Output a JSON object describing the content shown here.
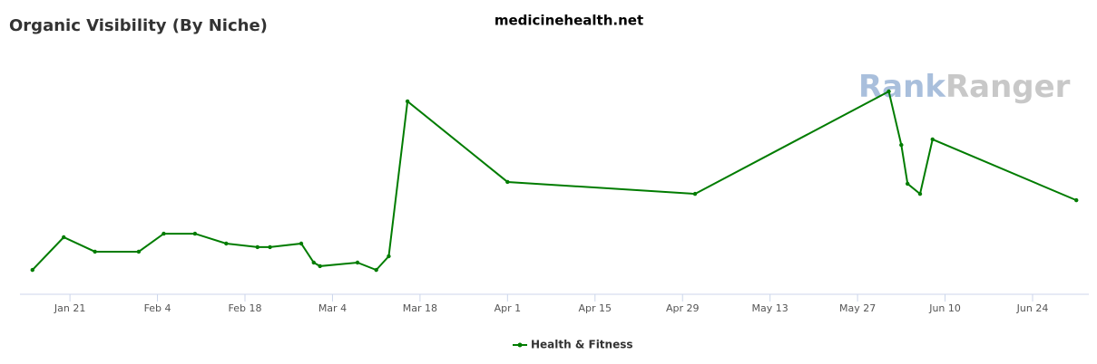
{
  "chart_data": {
    "type": "line",
    "title": "Organic Visibility (By Niche)",
    "subtitle": "medicinehealth.net",
    "watermark": [
      "Rank",
      "Ranger"
    ],
    "x": [
      "Jan 15",
      "Jan 20",
      "Jan 25",
      "Feb 1",
      "Feb 5",
      "Feb 10",
      "Feb 15",
      "Feb 20",
      "Feb 22",
      "Feb 27",
      "Mar 1",
      "Mar 2",
      "Mar 8",
      "Mar 11",
      "Mar 13",
      "Mar 16",
      "Apr 1",
      "May 1",
      "Jun 1",
      "Jun 3",
      "Jun 4",
      "Jun 6",
      "Jun 8",
      "Jul 1"
    ],
    "xlim": [
      "Jan 13",
      "Jul 3"
    ],
    "xticks": [
      "Jan 21",
      "Feb 4",
      "Feb 18",
      "Mar 4",
      "Mar 18",
      "Apr 1",
      "Apr 15",
      "Apr 29",
      "May 13",
      "May 27",
      "Jun 10",
      "Jun 24"
    ],
    "ylim": [
      0,
      100
    ],
    "series": [
      {
        "name": "Health & Fitness",
        "color": "#007c00",
        "values": [
          9.6,
          22.5,
          16.8,
          16.8,
          23.9,
          23.9,
          20,
          18.6,
          18.6,
          20,
          12.5,
          11.1,
          12.5,
          9.6,
          15,
          76.1,
          44.3,
          39.6,
          80,
          58.9,
          43.6,
          39.6,
          61.1,
          37.1
        ]
      }
    ],
    "grid": false,
    "legend": "bottom"
  }
}
